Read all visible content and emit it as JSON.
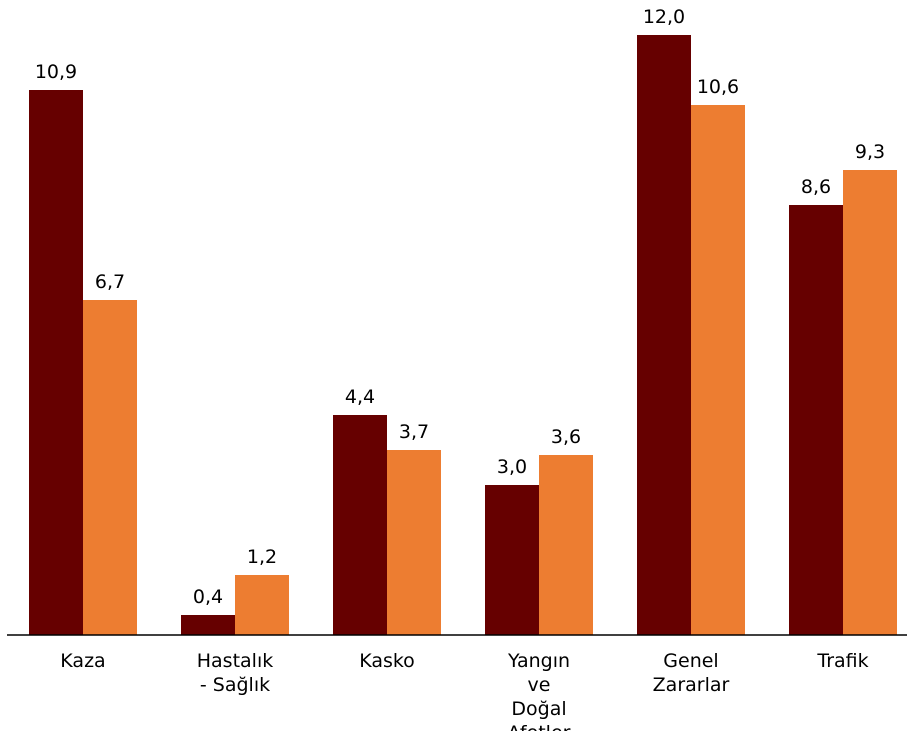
{
  "chart_data": {
    "type": "bar",
    "categories": [
      "Kaza",
      "Hastalık - Sağlık",
      "Kasko",
      "Yangın ve Doğal Afetler",
      "Genel Zararlar",
      "Trafik"
    ],
    "series": [
      {
        "color": "#660000",
        "values": [
          10.9,
          0.4,
          4.4,
          3.0,
          12.0,
          8.6
        ],
        "value_labels": [
          "10,9",
          "0,4",
          "4,4",
          "3,0",
          "12,0",
          "8,6"
        ]
      },
      {
        "color": "#ed7d31",
        "values": [
          6.7,
          1.2,
          3.7,
          3.6,
          10.6,
          9.3
        ],
        "value_labels": [
          "6,7",
          "1,2",
          "3,7",
          "3,6",
          "10,6",
          "9,3"
        ]
      }
    ],
    "ylim": [
      0,
      12
    ]
  }
}
